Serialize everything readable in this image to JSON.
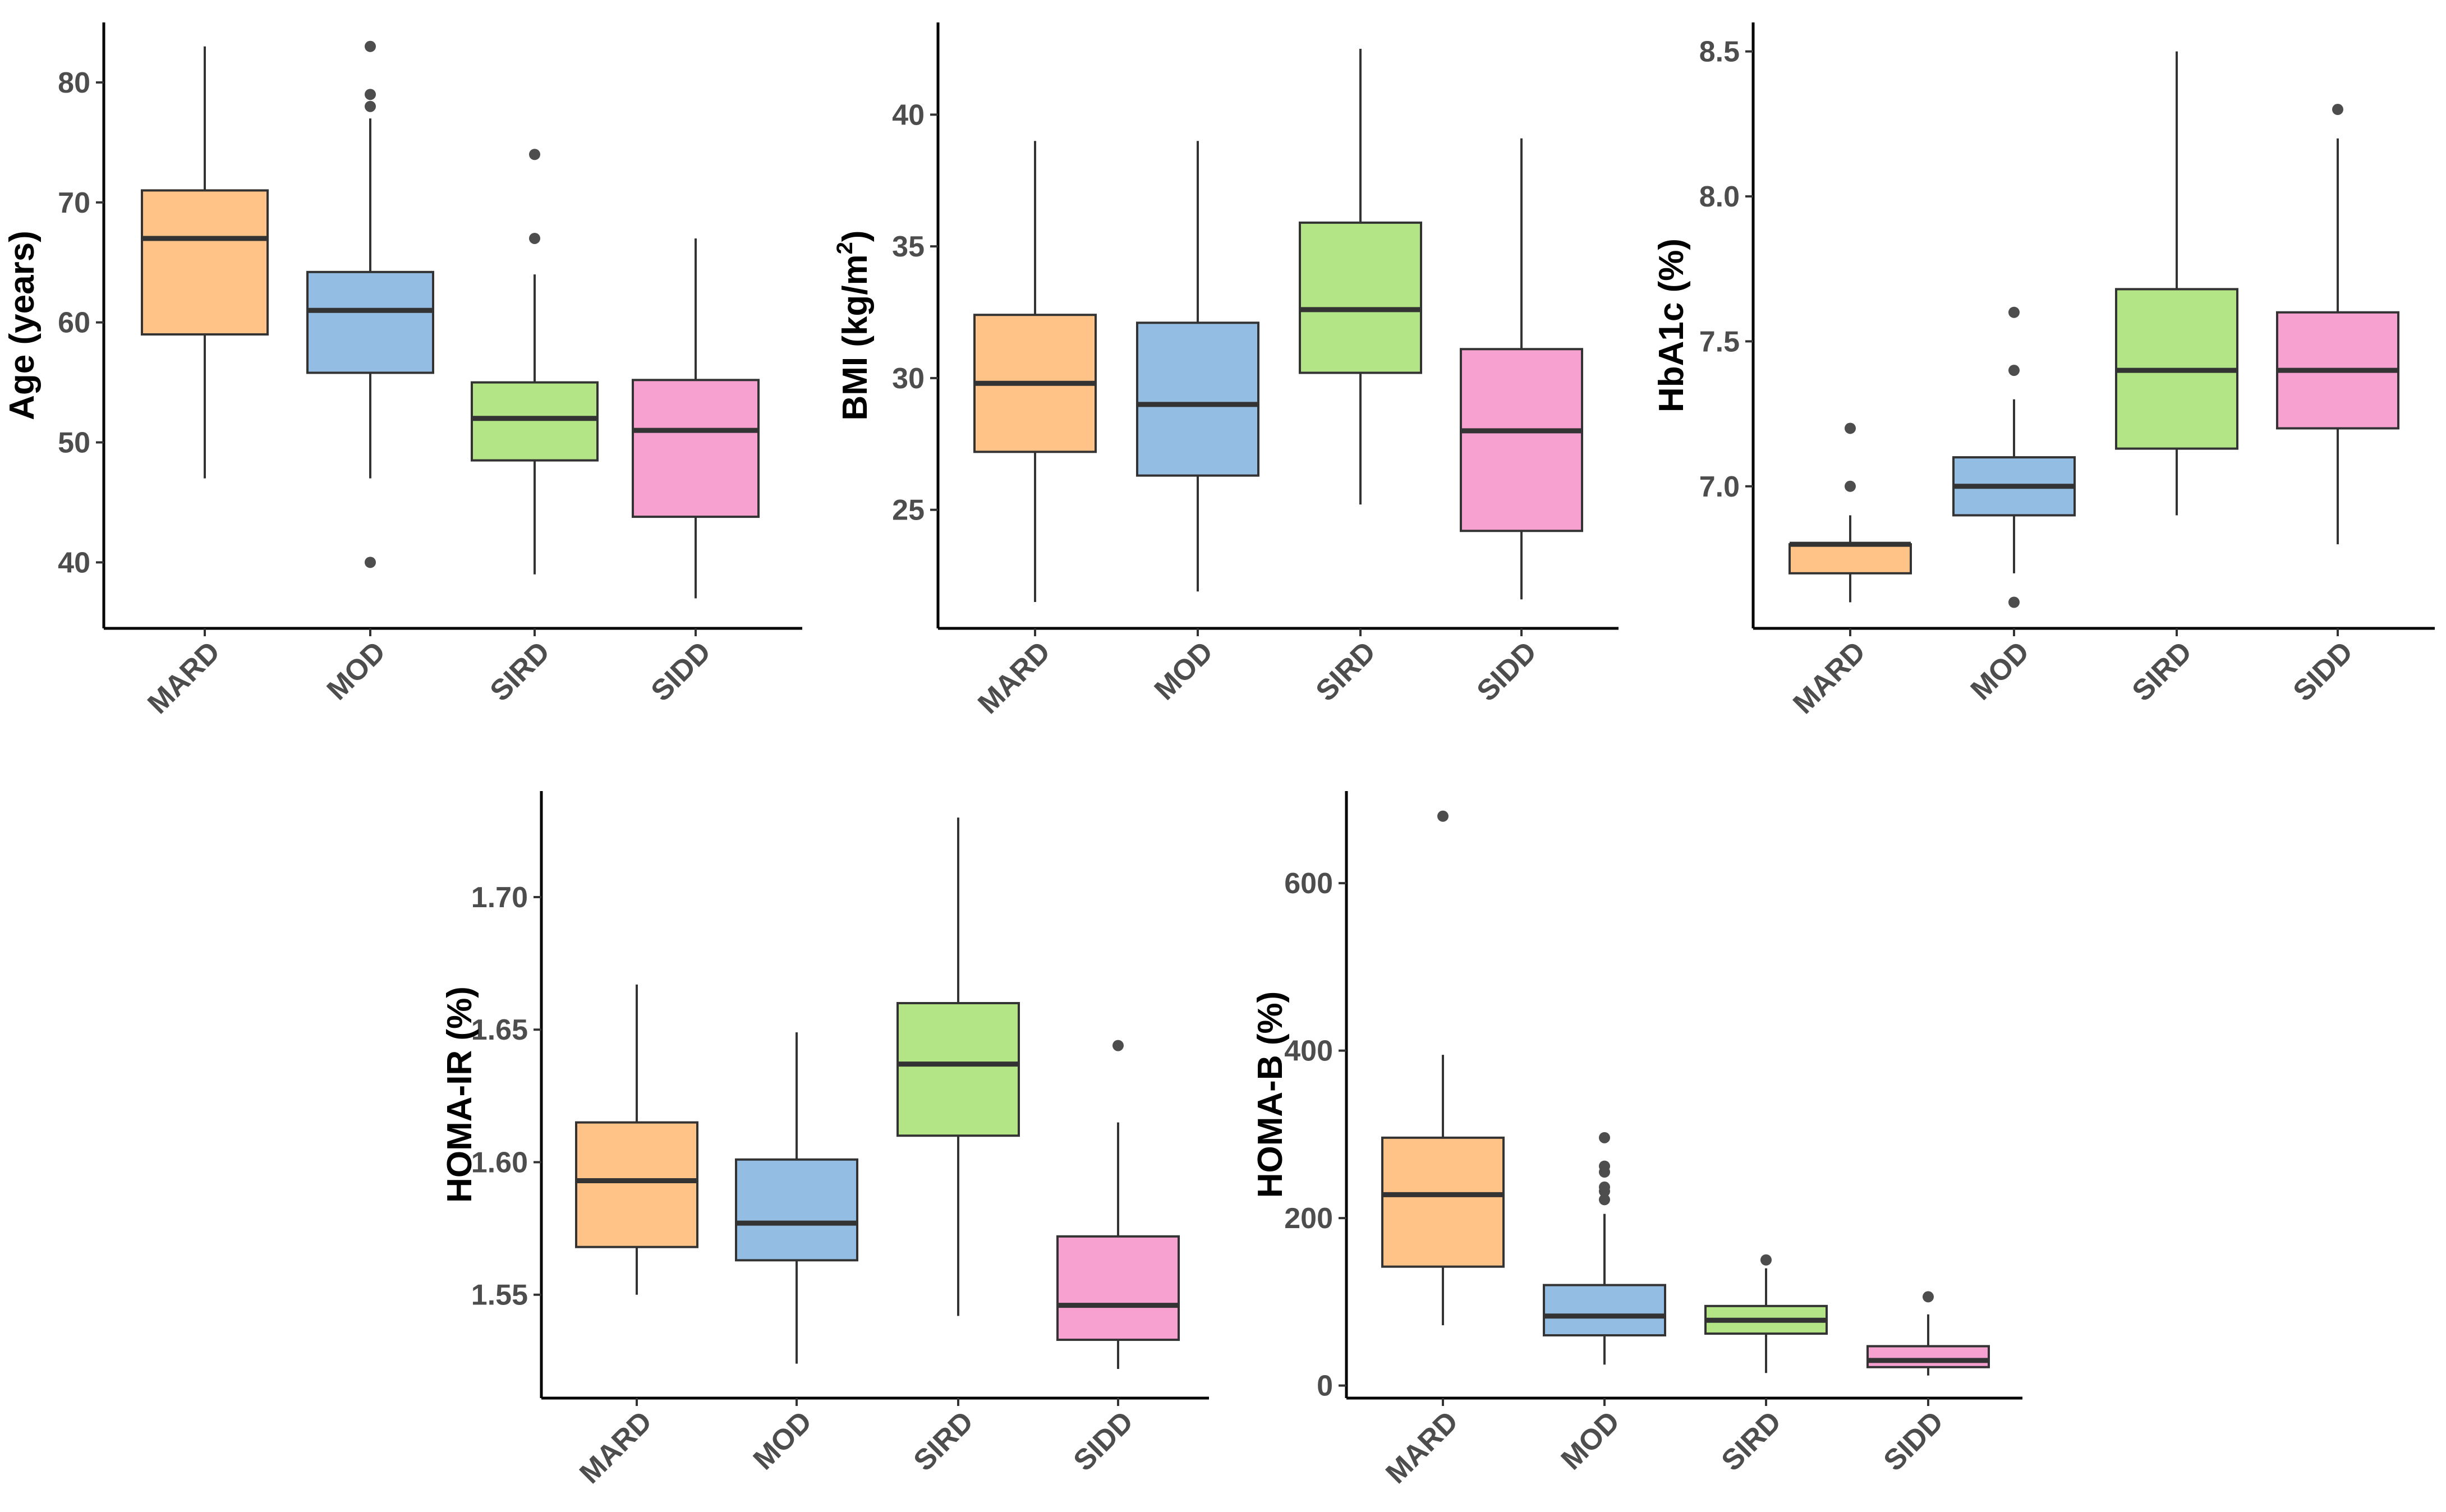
{
  "colors": {
    "MARD": "#ffc388",
    "MOD": "#93bde2",
    "SIRD": "#b3e486",
    "SIDD": "#f6a1d0"
  },
  "chart_data": [
    {
      "type": "box",
      "ylabel": "Age (years)",
      "ylim": [
        34.5,
        85
      ],
      "yticks": [
        40,
        50,
        60,
        70,
        80
      ],
      "ytick_labels": [
        "40",
        "50",
        "60",
        "70",
        "80"
      ],
      "categories": [
        "MARD",
        "MOD",
        "SIRD",
        "SIDD"
      ],
      "boxes": [
        {
          "name": "MARD",
          "min": 47,
          "q1": 59,
          "median": 67,
          "q3": 71,
          "max": 83,
          "outliers": []
        },
        {
          "name": "MOD",
          "min": 47,
          "q1": 55.8,
          "median": 61,
          "q3": 64.2,
          "max": 77,
          "outliers": [
            83,
            79,
            78,
            40
          ]
        },
        {
          "name": "SIRD",
          "min": 39,
          "q1": 48.5,
          "median": 52,
          "q3": 55,
          "max": 64,
          "outliers": [
            74,
            67
          ]
        },
        {
          "name": "SIDD",
          "min": 37,
          "q1": 43.8,
          "median": 51,
          "q3": 55.2,
          "max": 67,
          "outliers": []
        }
      ]
    },
    {
      "type": "box",
      "ylabel": "BMI (kg/m",
      "ylabel_sup": "2",
      "ylabel_close": ")",
      "ylim": [
        20.5,
        43.5
      ],
      "yticks": [
        25,
        30,
        35,
        40
      ],
      "ytick_labels": [
        "25",
        "30",
        "35",
        "40"
      ],
      "categories": [
        "MARD",
        "MOD",
        "SIRD",
        "SIDD"
      ],
      "boxes": [
        {
          "name": "MARD",
          "min": 21.5,
          "q1": 27.2,
          "median": 29.8,
          "q3": 32.4,
          "max": 39,
          "outliers": []
        },
        {
          "name": "MOD",
          "min": 21.9,
          "q1": 26.3,
          "median": 29,
          "q3": 32.1,
          "max": 39,
          "outliers": []
        },
        {
          "name": "SIRD",
          "min": 25.2,
          "q1": 30.2,
          "median": 32.6,
          "q3": 35.9,
          "max": 42.5,
          "outliers": []
        },
        {
          "name": "SIDD",
          "min": 21.6,
          "q1": 24.2,
          "median": 28,
          "q3": 31.1,
          "max": 39.1,
          "outliers": []
        }
      ]
    },
    {
      "type": "box",
      "ylabel": "HbA1c (%)",
      "ylim": [
        6.51,
        8.6
      ],
      "yticks": [
        7.0,
        7.5,
        8.0,
        8.5
      ],
      "ytick_labels": [
        "7.0",
        "7.5",
        "8.0",
        "8.5"
      ],
      "categories": [
        "MARD",
        "MOD",
        "SIRD",
        "SIDD"
      ],
      "boxes": [
        {
          "name": "MARD",
          "min": 6.6,
          "q1": 6.7,
          "median": 6.8,
          "q3": 6.8,
          "max": 6.9,
          "outliers": [
            7.2,
            7.0
          ]
        },
        {
          "name": "MOD",
          "min": 6.7,
          "q1": 6.9,
          "median": 7.0,
          "q3": 7.1,
          "max": 7.3,
          "outliers": [
            7.6,
            7.4,
            6.6
          ]
        },
        {
          "name": "SIRD",
          "min": 6.9,
          "q1": 7.13,
          "median": 7.4,
          "q3": 7.68,
          "max": 8.5,
          "outliers": []
        },
        {
          "name": "SIDD",
          "min": 6.8,
          "q1": 7.2,
          "median": 7.4,
          "q3": 7.6,
          "max": 8.2,
          "outliers": [
            8.3
          ]
        }
      ]
    },
    {
      "type": "box",
      "ylabel": "HOMA-IR (%)",
      "ylim": [
        1.511,
        1.74
      ],
      "yticks": [
        1.55,
        1.6,
        1.65,
        1.7
      ],
      "ytick_labels": [
        "1.55",
        "1.60",
        "1.65",
        "1.70"
      ],
      "categories": [
        "MARD",
        "MOD",
        "SIRD",
        "SIDD"
      ],
      "boxes": [
        {
          "name": "MARD",
          "min": 1.55,
          "q1": 1.568,
          "median": 1.593,
          "q3": 1.615,
          "max": 1.667,
          "outliers": []
        },
        {
          "name": "MOD",
          "min": 1.524,
          "q1": 1.563,
          "median": 1.577,
          "q3": 1.601,
          "max": 1.649,
          "outliers": []
        },
        {
          "name": "SIRD",
          "min": 1.542,
          "q1": 1.61,
          "median": 1.637,
          "q3": 1.66,
          "max": 1.73,
          "outliers": []
        },
        {
          "name": "SIDD",
          "min": 1.522,
          "q1": 1.533,
          "median": 1.546,
          "q3": 1.572,
          "max": 1.615,
          "outliers": [
            1.644
          ]
        }
      ]
    },
    {
      "type": "box",
      "ylabel": "HOMA-B (%)",
      "ylim": [
        -15,
        710
      ],
      "yticks": [
        0,
        200,
        400,
        600
      ],
      "ytick_labels": [
        "0",
        "200",
        "400",
        "600"
      ],
      "categories": [
        "MARD",
        "MOD",
        "SIRD",
        "SIDD"
      ],
      "boxes": [
        {
          "name": "MARD",
          "min": 72,
          "q1": 142,
          "median": 228,
          "q3": 296,
          "max": 395,
          "outliers": [
            680
          ]
        },
        {
          "name": "MOD",
          "min": 25,
          "q1": 60,
          "median": 83,
          "q3": 120,
          "max": 205,
          "outliers": [
            296,
            262,
            255,
            237,
            232,
            222
          ]
        },
        {
          "name": "SIRD",
          "min": 15,
          "q1": 62,
          "median": 78,
          "q3": 95,
          "max": 140,
          "outliers": [
            150
          ]
        },
        {
          "name": "SIDD",
          "min": 12,
          "q1": 22,
          "median": 30,
          "q3": 47,
          "max": 85,
          "outliers": [
            106
          ]
        }
      ]
    }
  ]
}
